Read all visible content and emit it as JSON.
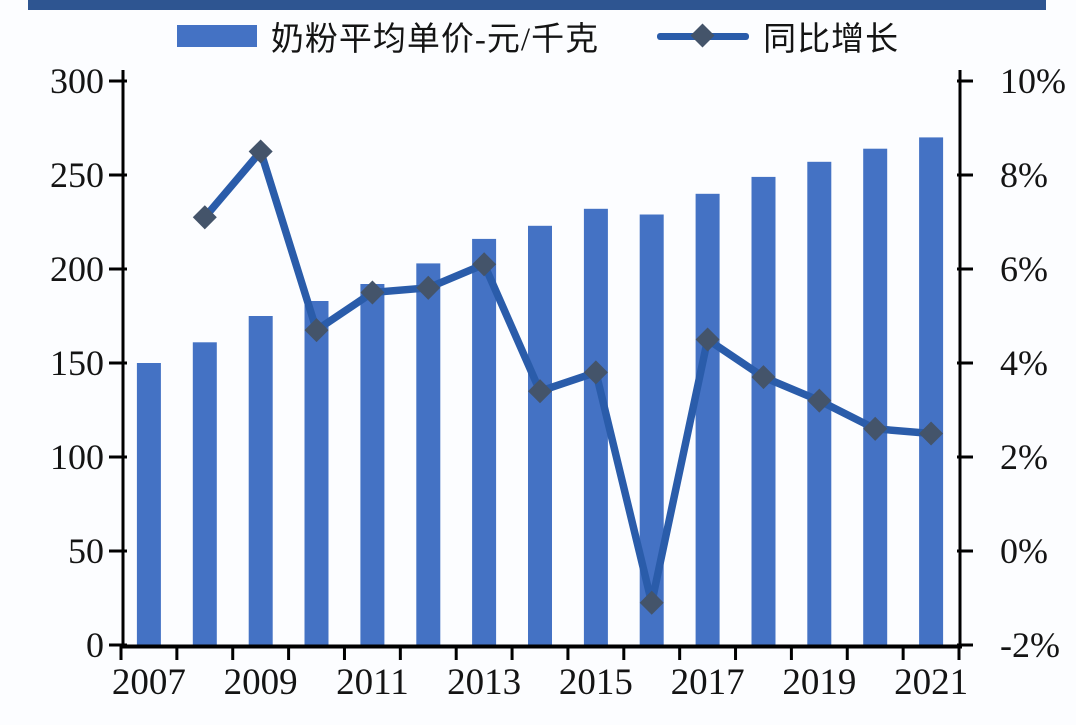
{
  "page": {
    "background": "#FCFDFF"
  },
  "top_bar": {
    "color": "#2E5591"
  },
  "legend": {
    "position": "top"
  },
  "chart_data": {
    "type": "bar",
    "subtype": "combo bar+line, dual axis",
    "title": "",
    "categories": [
      "2007",
      "2008",
      "2009",
      "2010",
      "2011",
      "2012",
      "2013",
      "2014",
      "2015",
      "2016",
      "2017",
      "2018",
      "2019",
      "2020",
      "2021"
    ],
    "series": [
      {
        "name": "奶粉平均单价-元/千克",
        "type": "bar",
        "axis": "left",
        "color": "#4472C4",
        "values": [
          150,
          161,
          175,
          183,
          192,
          203,
          216,
          223,
          232,
          229,
          240,
          249,
          257,
          264,
          270
        ]
      },
      {
        "name": "同比增长",
        "type": "line",
        "axis": "right",
        "color": "#2A5CAA",
        "marker": "diamond",
        "marker_color": "#44546A",
        "values": [
          null,
          7.1,
          8.5,
          4.7,
          5.5,
          5.6,
          6.1,
          3.4,
          3.8,
          -1.1,
          4.5,
          3.7,
          3.2,
          2.6,
          2.5
        ]
      }
    ],
    "left_axis": {
      "min": 0,
      "max": 300,
      "step": 50,
      "tick_labels": [
        "0",
        "50",
        "100",
        "150",
        "200",
        "250",
        "300"
      ]
    },
    "right_axis": {
      "min": -2,
      "max": 10,
      "step": 2,
      "tick_labels": [
        "-2%",
        "0%",
        "2%",
        "4%",
        "6%",
        "8%",
        "10%"
      ]
    },
    "x_axis": {
      "tick_labels": [
        "2007",
        "2009",
        "2011",
        "2013",
        "2015",
        "2017",
        "2019",
        "2021"
      ]
    },
    "grid": false,
    "legend_position": "top",
    "axis_color": "#000000",
    "text_color": "#141414"
  }
}
